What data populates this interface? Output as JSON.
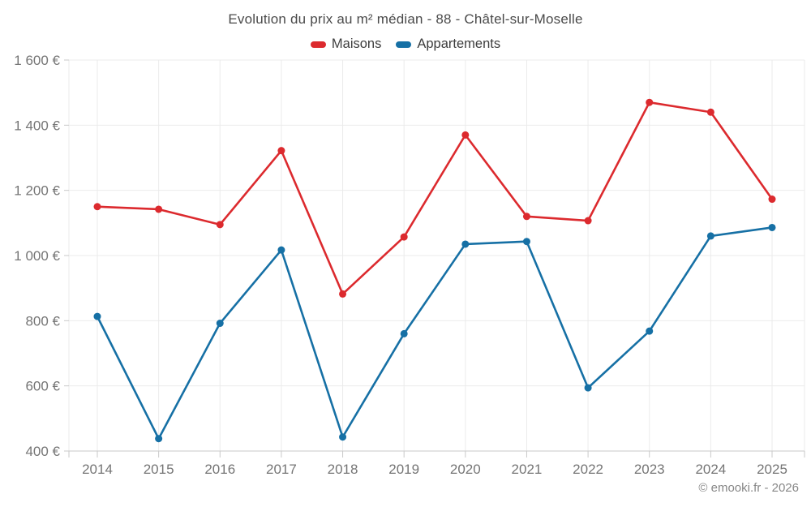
{
  "title": "Evolution du prix au m² médian - 88 - Châtel-sur-Moselle",
  "legend": [
    {
      "label": "Maisons",
      "color": "#dc2a2e"
    },
    {
      "label": "Appartements",
      "color": "#1670a5"
    }
  ],
  "footer": "© emooki.fr - 2026",
  "chart_data": {
    "type": "line",
    "title": "Evolution du prix au m² médian - 88 - Châtel-sur-Moselle",
    "categories": [
      "2014",
      "2015",
      "2016",
      "2017",
      "2018",
      "2019",
      "2020",
      "2021",
      "2022",
      "2023",
      "2024",
      "2025"
    ],
    "series": [
      {
        "name": "Maisons",
        "color": "#dc2a2e",
        "values": [
          1150,
          1142,
          1095,
          1322,
          882,
          1057,
          1370,
          1120,
          1107,
          1470,
          1440,
          1173
        ]
      },
      {
        "name": "Appartements",
        "color": "#1670a5",
        "values": [
          813,
          438,
          792,
          1017,
          443,
          760,
          1035,
          1043,
          594,
          768,
          1060,
          1086
        ]
      }
    ],
    "xlabel": "",
    "ylabel": "",
    "ylim": [
      400,
      1600
    ],
    "ytick_step": 200,
    "ytick_labels": [
      "400 €",
      "600 €",
      "800 €",
      "1 000 €",
      "1 200 €",
      "1 400 €",
      "1 600 €"
    ],
    "grid": true,
    "legend_position": "top",
    "colors": {
      "gridline": "#ebebeb",
      "axis": "#c9c9c9",
      "tick": "#c9c9c9",
      "tick_label": "#757575"
    }
  }
}
